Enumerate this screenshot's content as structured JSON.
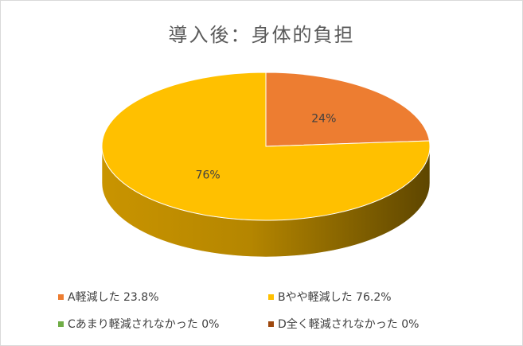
{
  "chart_data": {
    "type": "pie",
    "title": "導入後：身体的負担",
    "three_d": true,
    "legend_placement": "bottom",
    "slices": [
      {
        "label": "A軽減した 23.8%",
        "value": 23.8,
        "data_label": "24%",
        "color": "#ED7D31"
      },
      {
        "label": "Bやや軽減した 76.2%",
        "value": 76.2,
        "data_label": "76%",
        "color": "#FFC000"
      },
      {
        "label": "Cあまり軽減されなかった 0%",
        "value": 0,
        "data_label": "",
        "color": "#70AD47"
      },
      {
        "label": "D全く軽減されなかった 0%",
        "value": 0,
        "data_label": "",
        "color": "#9E480E"
      }
    ]
  }
}
